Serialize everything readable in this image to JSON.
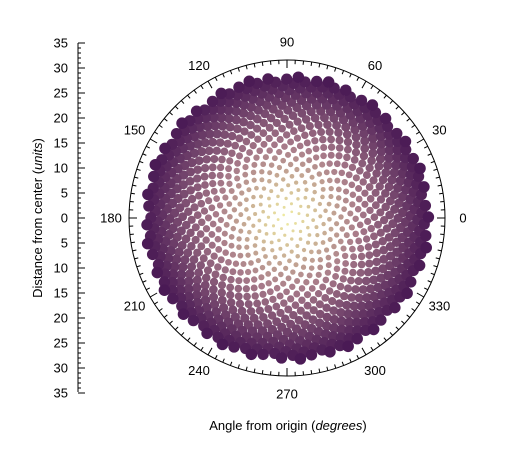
{
  "chart_data": {
    "type": "scatter",
    "subtype": "polar",
    "title": "",
    "xlabel": {
      "prefix": "Angle from origin (",
      "italic": "degrees",
      "suffix": ")"
    },
    "ylabel": {
      "prefix": "Distance from center (",
      "italic": "units",
      "suffix": ")"
    },
    "angle_ticks": [
      "0",
      "30",
      "60",
      "90",
      "120",
      "150",
      "180",
      "210",
      "240",
      "270",
      "300",
      "330"
    ],
    "radius_ticks_upper": [
      "35",
      "30",
      "25",
      "20",
      "15",
      "10",
      "5",
      "0"
    ],
    "radius_ticks_lower": [
      "5",
      "10",
      "15",
      "20",
      "25",
      "30",
      "35"
    ],
    "rlim": [
      0,
      35
    ],
    "pattern": "phyllotaxis spiral (golden angle 137.508°)",
    "point_count": 1000,
    "golden_angle_deg": 137.508,
    "radius_formula": "r = sqrt(n)",
    "max_radius": 31.6,
    "color_scale": {
      "low": "#f3f0a3",
      "mid": "#a87b8a",
      "high": "#4a1a55",
      "encodes": "distance from center"
    },
    "grid": false,
    "legend": "none"
  }
}
